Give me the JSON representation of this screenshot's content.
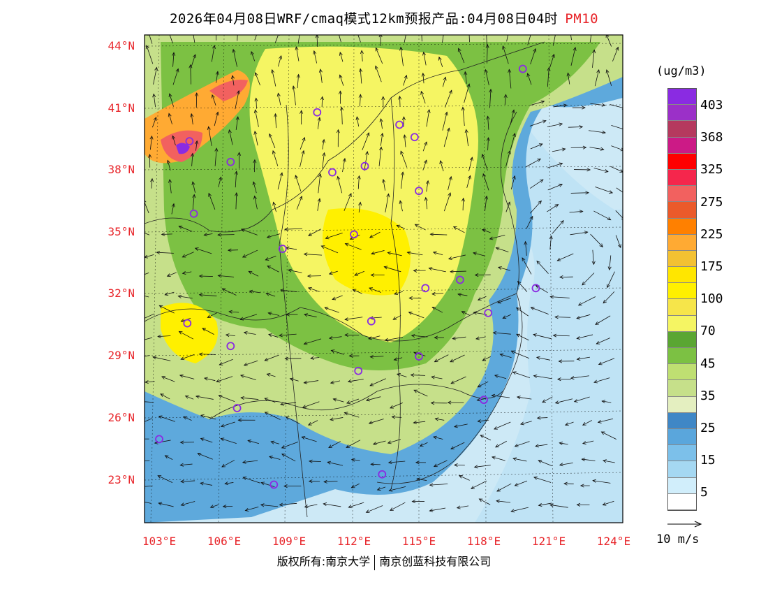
{
  "title": {
    "main": "2026年04月08日WRF/cmaq模式12km预报产品:04月08日04时",
    "pollutant": "PM10"
  },
  "map": {
    "lat_labels": [
      "44°N",
      "41°N",
      "38°N",
      "35°N",
      "32°N",
      "29°N",
      "26°N",
      "23°N"
    ],
    "lon_labels": [
      "103°E",
      "106°E",
      "109°E",
      "112°E",
      "115°E",
      "118°E",
      "121°E",
      "124°E"
    ]
  },
  "colorbar": {
    "units": "(ug/m3)",
    "colors": [
      "#8a2be2",
      "#9b30c8",
      "#b5395e",
      "#cc1a86",
      "#ff0000",
      "#f5264c",
      "#f2615f",
      "#eb5a2a",
      "#ff8000",
      "#ffaa33",
      "#f3c132",
      "#ffe600",
      "#fff000",
      "#f6e54a",
      "#f5f563",
      "#5aa632",
      "#7cc143",
      "#bfdf72",
      "#c6e08a",
      "#e4efc0",
      "#3f87c6",
      "#5aa6dc",
      "#7cc0ea",
      "#a5d8f2",
      "#d1eefb"
    ],
    "labels": [
      "403",
      "368",
      "325",
      "275",
      "225",
      "175",
      "100",
      "70",
      "45",
      "35",
      "25",
      "15",
      "5"
    ]
  },
  "vector_reference": "10 m/s",
  "footer": {
    "copyright": "版权所有:南京大学",
    "company": "南京创蓝科技有限公司"
  },
  "cities": [
    {
      "lon": 104.4,
      "lat": 39.4
    },
    {
      "lon": 106.3,
      "lat": 38.4
    },
    {
      "lon": 110.3,
      "lat": 40.8
    },
    {
      "lon": 114.1,
      "lat": 40.2
    },
    {
      "lon": 114.8,
      "lat": 39.6
    },
    {
      "lon": 111.0,
      "lat": 37.9
    },
    {
      "lon": 112.5,
      "lat": 38.2
    },
    {
      "lon": 115.0,
      "lat": 37.0
    },
    {
      "lon": 104.6,
      "lat": 35.9
    },
    {
      "lon": 108.7,
      "lat": 34.2
    },
    {
      "lon": 112.0,
      "lat": 34.9
    },
    {
      "lon": 116.9,
      "lat": 32.7
    },
    {
      "lon": 115.3,
      "lat": 32.3
    },
    {
      "lon": 120.4,
      "lat": 32.3
    },
    {
      "lon": 104.3,
      "lat": 30.6
    },
    {
      "lon": 112.8,
      "lat": 30.7
    },
    {
      "lon": 118.2,
      "lat": 31.1
    },
    {
      "lon": 106.3,
      "lat": 29.5
    },
    {
      "lon": 115.0,
      "lat": 29.0
    },
    {
      "lon": 112.2,
      "lat": 28.3
    },
    {
      "lon": 106.6,
      "lat": 26.5
    },
    {
      "lon": 118.0,
      "lat": 26.9
    },
    {
      "lon": 103.0,
      "lat": 25.0
    },
    {
      "lon": 108.3,
      "lat": 22.8
    },
    {
      "lon": 113.3,
      "lat": 23.3
    },
    {
      "lon": 119.8,
      "lat": 42.9
    }
  ]
}
